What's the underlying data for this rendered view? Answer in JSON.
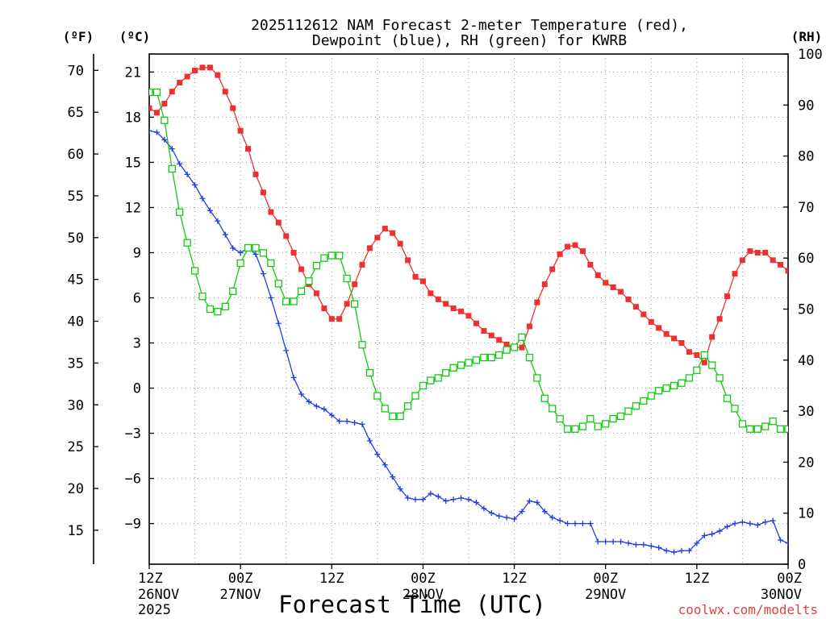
{
  "chart_data": {
    "type": "line",
    "title_line1": "2025112612 NAM Forecast 2-meter Temperature (red),",
    "title_line2": "Dewpoint (blue), RH (green) for KWRB",
    "xlabel": "Forecast Time (UTC)",
    "watermark": "coolwx.com/modelts",
    "unit_labels": {
      "fahrenheit": "(ºF)",
      "celsius": "(ºC)",
      "rh": "(RH)"
    },
    "x_unit": "forecast hours since 2025-11-26 12Z",
    "xlim": [
      0,
      84
    ],
    "x_ticks": [
      {
        "hour": 0,
        "time": "12Z",
        "date": "26NOV",
        "year": "2025"
      },
      {
        "hour": 12,
        "time": "00Z",
        "date": "27NOV",
        "year": ""
      },
      {
        "hour": 24,
        "time": "12Z",
        "date": "",
        "year": ""
      },
      {
        "hour": 36,
        "time": "00Z",
        "date": "28NOV",
        "year": ""
      },
      {
        "hour": 48,
        "time": "12Z",
        "date": "",
        "year": ""
      },
      {
        "hour": 60,
        "time": "00Z",
        "date": "29NOV",
        "year": ""
      },
      {
        "hour": 72,
        "time": "12Z",
        "date": "",
        "year": ""
      },
      {
        "hour": 84,
        "time": "00Z",
        "date": "30NOV",
        "year": ""
      }
    ],
    "celsius_axis": {
      "ylim": [
        -11.7,
        22.2
      ],
      "ticks": [
        "21",
        "18",
        "15",
        "12",
        "9",
        "6",
        "3",
        "0",
        "−3",
        "−6",
        "−9"
      ],
      "tick_values": [
        21,
        18,
        15,
        12,
        9,
        6,
        3,
        0,
        -3,
        -6,
        -9
      ]
    },
    "fahrenheit_axis": {
      "ticks": [
        "70",
        "65",
        "60",
        "55",
        "50",
        "45",
        "40",
        "35",
        "30",
        "25",
        "20",
        "15"
      ],
      "tick_values": [
        70,
        65,
        60,
        55,
        50,
        45,
        40,
        35,
        30,
        25,
        20,
        15
      ]
    },
    "rh_axis": {
      "ylim": [
        0,
        100
      ],
      "ticks": [
        "100",
        "90",
        "80",
        "70",
        "60",
        "50",
        "40",
        "30",
        "20",
        "10",
        "0"
      ],
      "tick_values": [
        100,
        90,
        80,
        70,
        60,
        50,
        40,
        30,
        20,
        10,
        0
      ]
    },
    "series": [
      {
        "name": "2-meter Temperature",
        "units": "°C",
        "color": "#ee3030",
        "marker": "filled-square",
        "values": [
          [
            0,
            18.6
          ],
          [
            1,
            18.3
          ],
          [
            2,
            18.9
          ],
          [
            3,
            19.7
          ],
          [
            4,
            20.3
          ],
          [
            5,
            20.7
          ],
          [
            6,
            21.1
          ],
          [
            7,
            21.3
          ],
          [
            8,
            21.3
          ],
          [
            9,
            20.8
          ],
          [
            10,
            19.7
          ],
          [
            11,
            18.6
          ],
          [
            12,
            17.1
          ],
          [
            13,
            15.9
          ],
          [
            14,
            14.2
          ],
          [
            15,
            13.0
          ],
          [
            16,
            11.7
          ],
          [
            17,
            11.0
          ],
          [
            18,
            10.1
          ],
          [
            19,
            9.0
          ],
          [
            20,
            7.9
          ],
          [
            21,
            6.9
          ],
          [
            22,
            6.3
          ],
          [
            23,
            5.3
          ],
          [
            24,
            4.6
          ],
          [
            25,
            4.6
          ],
          [
            26,
            5.6
          ],
          [
            27,
            6.9
          ],
          [
            28,
            8.2
          ],
          [
            29,
            9.3
          ],
          [
            30,
            10.0
          ],
          [
            31,
            10.6
          ],
          [
            32,
            10.3
          ],
          [
            33,
            9.6
          ],
          [
            34,
            8.5
          ],
          [
            35,
            7.4
          ],
          [
            36,
            7.1
          ],
          [
            37,
            6.3
          ],
          [
            38,
            5.9
          ],
          [
            39,
            5.6
          ],
          [
            40,
            5.3
          ],
          [
            41,
            5.1
          ],
          [
            42,
            4.8
          ],
          [
            43,
            4.3
          ],
          [
            44,
            3.8
          ],
          [
            45,
            3.5
          ],
          [
            46,
            3.2
          ],
          [
            47,
            2.9
          ],
          [
            48,
            2.7
          ],
          [
            49,
            2.7
          ],
          [
            50,
            4.1
          ],
          [
            51,
            5.7
          ],
          [
            52,
            6.9
          ],
          [
            53,
            7.9
          ],
          [
            54,
            8.9
          ],
          [
            55,
            9.4
          ],
          [
            56,
            9.5
          ],
          [
            57,
            9.1
          ],
          [
            58,
            8.2
          ],
          [
            59,
            7.5
          ],
          [
            60,
            7.0
          ],
          [
            61,
            6.7
          ],
          [
            62,
            6.4
          ],
          [
            63,
            5.9
          ],
          [
            64,
            5.4
          ],
          [
            65,
            4.9
          ],
          [
            66,
            4.4
          ],
          [
            67,
            4.0
          ],
          [
            68,
            3.6
          ],
          [
            69,
            3.3
          ],
          [
            70,
            3.0
          ],
          [
            71,
            2.4
          ],
          [
            72,
            2.2
          ],
          [
            73,
            1.7
          ],
          [
            74,
            3.4
          ],
          [
            75,
            4.6
          ],
          [
            76,
            6.1
          ],
          [
            77,
            7.6
          ],
          [
            78,
            8.5
          ],
          [
            79,
            9.1
          ],
          [
            80,
            9.0
          ],
          [
            81,
            9.0
          ],
          [
            82,
            8.5
          ],
          [
            83,
            8.2
          ],
          [
            84,
            7.8
          ]
        ]
      },
      {
        "name": "Dewpoint",
        "units": "°C",
        "color": "#2040dd",
        "marker": "plus",
        "values": [
          [
            0,
            17.1
          ],
          [
            1,
            17.0
          ],
          [
            2,
            16.5
          ],
          [
            3,
            15.9
          ],
          [
            4,
            14.9
          ],
          [
            5,
            14.2
          ],
          [
            6,
            13.5
          ],
          [
            7,
            12.6
          ],
          [
            8,
            11.8
          ],
          [
            9,
            11.1
          ],
          [
            10,
            10.2
          ],
          [
            11,
            9.3
          ],
          [
            12,
            9.0
          ],
          [
            13,
            9.3
          ],
          [
            14,
            8.9
          ],
          [
            15,
            7.6
          ],
          [
            16,
            6.0
          ],
          [
            17,
            4.3
          ],
          [
            18,
            2.5
          ],
          [
            19,
            0.7
          ],
          [
            20,
            -0.4
          ],
          [
            21,
            -0.9
          ],
          [
            22,
            -1.2
          ],
          [
            23,
            -1.4
          ],
          [
            24,
            -1.8
          ],
          [
            25,
            -2.2
          ],
          [
            26,
            -2.2
          ],
          [
            27,
            -2.3
          ],
          [
            28,
            -2.4
          ],
          [
            29,
            -3.5
          ],
          [
            30,
            -4.4
          ],
          [
            31,
            -5.1
          ],
          [
            32,
            -5.9
          ],
          [
            33,
            -6.7
          ],
          [
            34,
            -7.3
          ],
          [
            35,
            -7.4
          ],
          [
            36,
            -7.4
          ],
          [
            37,
            -7.0
          ],
          [
            38,
            -7.2
          ],
          [
            39,
            -7.5
          ],
          [
            40,
            -7.4
          ],
          [
            41,
            -7.3
          ],
          [
            42,
            -7.4
          ],
          [
            43,
            -7.6
          ],
          [
            44,
            -8.0
          ],
          [
            45,
            -8.3
          ],
          [
            46,
            -8.5
          ],
          [
            47,
            -8.6
          ],
          [
            48,
            -8.7
          ],
          [
            49,
            -8.2
          ],
          [
            50,
            -7.5
          ],
          [
            51,
            -7.6
          ],
          [
            52,
            -8.2
          ],
          [
            53,
            -8.6
          ],
          [
            54,
            -8.8
          ],
          [
            55,
            -9.0
          ],
          [
            56,
            -9.0
          ],
          [
            57,
            -9.0
          ],
          [
            58,
            -9.0
          ],
          [
            59,
            -10.2
          ],
          [
            60,
            -10.2
          ],
          [
            61,
            -10.2
          ],
          [
            62,
            -10.2
          ],
          [
            63,
            -10.3
          ],
          [
            64,
            -10.4
          ],
          [
            65,
            -10.4
          ],
          [
            66,
            -10.5
          ],
          [
            67,
            -10.6
          ],
          [
            68,
            -10.8
          ],
          [
            69,
            -10.9
          ],
          [
            70,
            -10.8
          ],
          [
            71,
            -10.8
          ],
          [
            72,
            -10.3
          ],
          [
            73,
            -9.8
          ],
          [
            74,
            -9.7
          ],
          [
            75,
            -9.5
          ],
          [
            76,
            -9.2
          ],
          [
            77,
            -9.0
          ],
          [
            78,
            -8.9
          ],
          [
            79,
            -9.0
          ],
          [
            80,
            -9.1
          ],
          [
            81,
            -8.9
          ],
          [
            82,
            -8.8
          ],
          [
            83,
            -10.1
          ],
          [
            84,
            -10.3
          ]
        ]
      },
      {
        "name": "Relative Humidity",
        "units": "%",
        "color": "#10cc10",
        "marker": "open-square",
        "values": [
          [
            0,
            92.5
          ],
          [
            1,
            92.5
          ],
          [
            2,
            87.0
          ],
          [
            3,
            77.5
          ],
          [
            4,
            69.0
          ],
          [
            5,
            63.0
          ],
          [
            6,
            57.5
          ],
          [
            7,
            52.5
          ],
          [
            8,
            50.0
          ],
          [
            9,
            49.5
          ],
          [
            10,
            50.5
          ],
          [
            11,
            53.5
          ],
          [
            12,
            59.0
          ],
          [
            13,
            62.0
          ],
          [
            14,
            62.0
          ],
          [
            15,
            61.0
          ],
          [
            16,
            59.0
          ],
          [
            17,
            55.0
          ],
          [
            18,
            51.5
          ],
          [
            19,
            51.5
          ],
          [
            20,
            53.5
          ],
          [
            21,
            55.5
          ],
          [
            22,
            58.5
          ],
          [
            23,
            60.0
          ],
          [
            24,
            60.5
          ],
          [
            25,
            60.5
          ],
          [
            26,
            56.0
          ],
          [
            27,
            51.0
          ],
          [
            28,
            43.0
          ],
          [
            29,
            37.5
          ],
          [
            30,
            33.0
          ],
          [
            31,
            30.5
          ],
          [
            32,
            29.0
          ],
          [
            33,
            29.0
          ],
          [
            34,
            31.0
          ],
          [
            35,
            33.0
          ],
          [
            36,
            35.0
          ],
          [
            37,
            36.0
          ],
          [
            38,
            36.5
          ],
          [
            39,
            37.5
          ],
          [
            40,
            38.5
          ],
          [
            41,
            39.0
          ],
          [
            42,
            39.5
          ],
          [
            43,
            40.0
          ],
          [
            44,
            40.5
          ],
          [
            45,
            40.5
          ],
          [
            46,
            41.0
          ],
          [
            47,
            42.0
          ],
          [
            48,
            42.5
          ],
          [
            49,
            44.5
          ],
          [
            50,
            40.5
          ],
          [
            51,
            36.5
          ],
          [
            52,
            32.5
          ],
          [
            53,
            30.5
          ],
          [
            54,
            28.5
          ],
          [
            55,
            26.5
          ],
          [
            56,
            26.5
          ],
          [
            57,
            27.0
          ],
          [
            58,
            28.5
          ],
          [
            59,
            27.0
          ],
          [
            60,
            27.5
          ],
          [
            61,
            28.5
          ],
          [
            62,
            29.0
          ],
          [
            63,
            30.0
          ],
          [
            64,
            31.0
          ],
          [
            65,
            32.0
          ],
          [
            66,
            33.0
          ],
          [
            67,
            34.0
          ],
          [
            68,
            34.5
          ],
          [
            69,
            35.0
          ],
          [
            70,
            35.5
          ],
          [
            71,
            36.5
          ],
          [
            72,
            38.0
          ],
          [
            73,
            41.0
          ],
          [
            74,
            39.0
          ],
          [
            75,
            36.5
          ],
          [
            76,
            32.5
          ],
          [
            77,
            30.5
          ],
          [
            78,
            27.5
          ],
          [
            79,
            26.5
          ],
          [
            80,
            26.5
          ],
          [
            81,
            27.0
          ],
          [
            82,
            28.0
          ],
          [
            83,
            26.5
          ],
          [
            84,
            26.5
          ]
        ]
      }
    ]
  }
}
